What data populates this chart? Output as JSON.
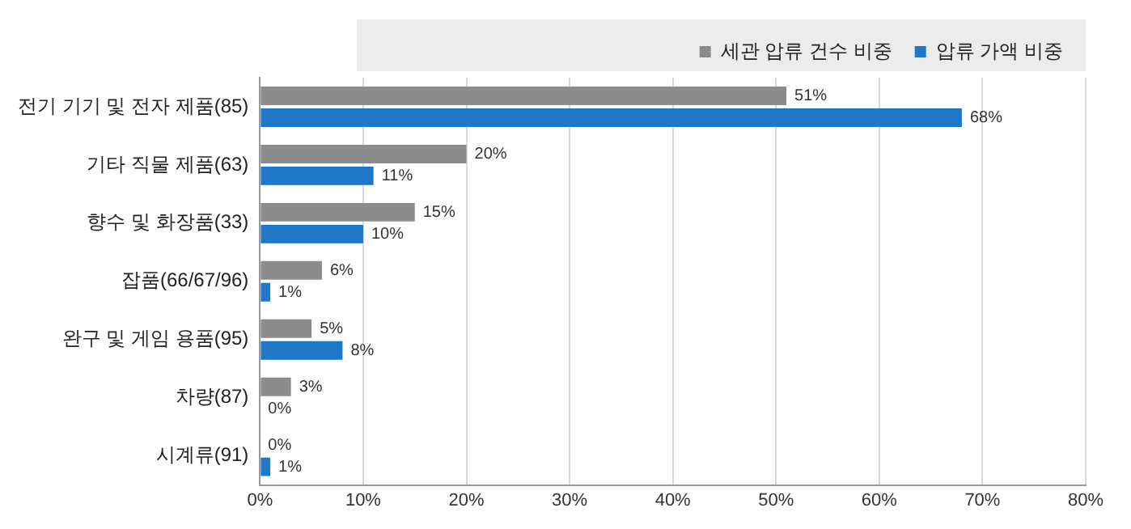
{
  "chart_data": {
    "type": "bar",
    "orientation": "horizontal",
    "categories": [
      "전기 기기 및 전자 제품(85)",
      "기타 직물 제품(63)",
      "향수 및 화장품(33)",
      "잡품(66/67/96)",
      "완구 및 게임 용품(95)",
      "차량(87)",
      "시계류(91)"
    ],
    "series": [
      {
        "name": "세관 압류 건수 비중",
        "color": "#8c8c8c",
        "values": [
          51,
          20,
          15,
          6,
          5,
          3,
          0
        ],
        "value_labels": [
          "51%",
          "20%",
          "15%",
          "6%",
          "5%",
          "3%",
          "0%"
        ]
      },
      {
        "name": "압류 가액 비중",
        "color": "#1f77c8",
        "values": [
          68,
          11,
          10,
          1,
          8,
          0,
          1
        ],
        "value_labels": [
          "68%",
          "11%",
          "10%",
          "1%",
          "8%",
          "0%",
          "1%"
        ]
      }
    ],
    "xlim": [
      0,
      80
    ],
    "xticks": [
      {
        "value": 0,
        "label": "0%"
      },
      {
        "value": 10,
        "label": "10%"
      },
      {
        "value": 20,
        "label": "20%"
      },
      {
        "value": 30,
        "label": "30%"
      },
      {
        "value": 40,
        "label": "40%"
      },
      {
        "value": 50,
        "label": "50%"
      },
      {
        "value": 60,
        "label": "60%"
      },
      {
        "value": 70,
        "label": "70%"
      },
      {
        "value": 80,
        "label": "80%"
      }
    ],
    "grid": "x",
    "legend": "top right"
  }
}
